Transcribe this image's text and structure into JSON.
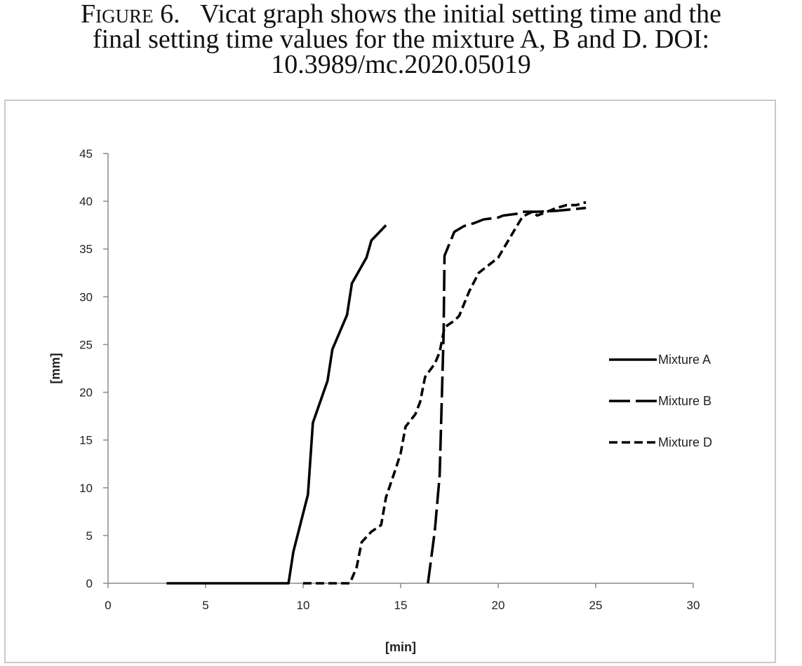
{
  "caption": {
    "label": "Figure 6.",
    "line1_rest": "Vicat graph shows the initial setting time and the",
    "line2": "final setting time values for the mixture A, B and D. DOI:",
    "line3": "10.3989/mc.2020.05019"
  },
  "chart_data": {
    "type": "line",
    "title": "",
    "xlabel": "[min]",
    "ylabel": "[mm]",
    "xlim": [
      0,
      30
    ],
    "ylim": [
      0,
      45
    ],
    "xticks": [
      0,
      5,
      10,
      15,
      20,
      25,
      30
    ],
    "yticks": [
      0,
      5,
      10,
      15,
      20,
      25,
      30,
      35,
      40,
      45
    ],
    "grid": false,
    "legend_position": "right",
    "series": [
      {
        "name": "Mixture A",
        "dash": "solid",
        "color": "#000000",
        "points": [
          [
            3.0,
            0
          ],
          [
            9.25,
            0
          ],
          [
            9.5,
            3.3
          ],
          [
            10.25,
            9.3
          ],
          [
            10.5,
            16.8
          ],
          [
            11.25,
            21.2
          ],
          [
            11.5,
            24.5
          ],
          [
            12.25,
            28.1
          ],
          [
            12.5,
            31.4
          ],
          [
            13.25,
            34.1
          ],
          [
            13.5,
            35.9
          ],
          [
            14.25,
            37.5
          ]
        ]
      },
      {
        "name": "Mixture B",
        "dash": "long-dash",
        "color": "#000000",
        "points": [
          [
            16.4,
            0
          ],
          [
            16.75,
            5.5
          ],
          [
            17.0,
            11.3
          ],
          [
            17.2,
            26.0
          ],
          [
            17.25,
            34.3
          ],
          [
            17.75,
            36.8
          ],
          [
            18.25,
            37.4
          ],
          [
            18.75,
            37.7
          ],
          [
            19.25,
            38.1
          ],
          [
            20.0,
            38.3
          ],
          [
            20.25,
            38.5
          ],
          [
            21.0,
            38.7
          ],
          [
            21.25,
            38.9
          ],
          [
            22.0,
            38.9
          ],
          [
            23.0,
            39.0
          ],
          [
            24.0,
            39.2
          ],
          [
            24.5,
            39.3
          ]
        ]
      },
      {
        "name": "Mixture D",
        "dash": "short-dash",
        "color": "#000000",
        "points": [
          [
            10.0,
            0
          ],
          [
            12.4,
            0
          ],
          [
            12.75,
            1.7
          ],
          [
            13.0,
            4.3
          ],
          [
            13.5,
            5.4
          ],
          [
            14.0,
            6.1
          ],
          [
            14.25,
            9.0
          ],
          [
            14.75,
            12.0
          ],
          [
            15.0,
            13.6
          ],
          [
            15.25,
            16.4
          ],
          [
            15.75,
            17.7
          ],
          [
            16.0,
            19.0
          ],
          [
            16.25,
            21.6
          ],
          [
            16.75,
            23.0
          ],
          [
            17.0,
            24.2
          ],
          [
            17.25,
            26.8
          ],
          [
            17.75,
            27.5
          ],
          [
            18.0,
            28.0
          ],
          [
            18.5,
            30.5
          ],
          [
            19.0,
            32.5
          ],
          [
            19.5,
            33.3
          ],
          [
            20.0,
            34.1
          ],
          [
            20.75,
            36.7
          ],
          [
            21.25,
            38.4
          ],
          [
            21.75,
            38.9
          ],
          [
            22.0,
            38.5
          ],
          [
            23.0,
            39.3
          ],
          [
            23.5,
            39.6
          ],
          [
            24.0,
            39.6
          ],
          [
            24.5,
            39.9
          ]
        ]
      }
    ]
  }
}
